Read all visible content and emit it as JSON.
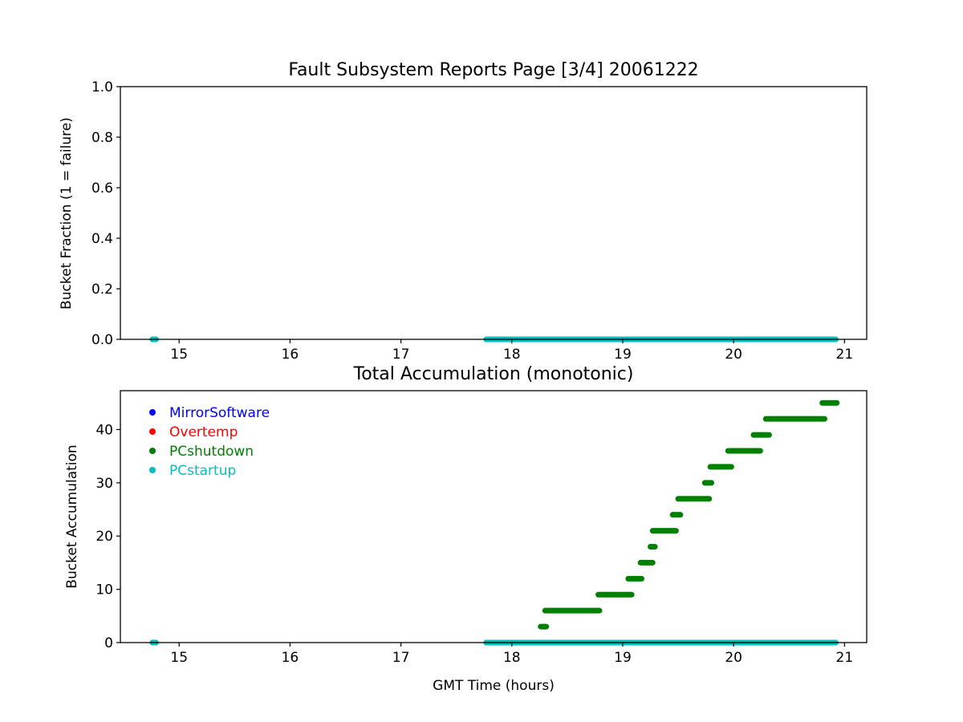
{
  "colors": {
    "MirrorSoftware": "#0000ff",
    "Overtemp": "#ff0000",
    "PCshutdown": "#008000",
    "PCstartup": "#00bfbf"
  },
  "chart_data": [
    {
      "type": "scatter",
      "title": "Fault Subsystem Reports Page [3/4] 20061222",
      "xlabel": "",
      "ylabel": "Bucket Fraction (1 = failure)",
      "xlim": [
        14.47,
        21.2
      ],
      "ylim": [
        0,
        1
      ],
      "xticks": [
        15,
        16,
        17,
        18,
        19,
        20,
        21
      ],
      "yticks": [
        0.0,
        0.2,
        0.4,
        0.6,
        0.8,
        1.0
      ],
      "ytick_labels": [
        "0.0",
        "0.2",
        "0.4",
        "0.6",
        "0.8",
        "1.0"
      ],
      "grid": false,
      "legend": null,
      "series": [
        {
          "name": "PCshutdown",
          "segments": [
            [
              14.76,
              14.79,
              0
            ],
            [
              17.77,
              20.92,
              0
            ]
          ]
        },
        {
          "name": "PCstartup",
          "segments": [
            [
              14.76,
              14.79,
              0
            ],
            [
              17.77,
              20.92,
              0
            ]
          ]
        }
      ]
    },
    {
      "type": "scatter",
      "title": "Total Accumulation (monotonic)",
      "xlabel": "GMT Time (hours)",
      "ylabel": "Bucket Accumulation",
      "xlim": [
        14.47,
        21.2
      ],
      "ylim": [
        0,
        47.3
      ],
      "xticks": [
        15,
        16,
        17,
        18,
        19,
        20,
        21
      ],
      "yticks": [
        0,
        10,
        20,
        30,
        40
      ],
      "ytick_labels": [
        "0",
        "10",
        "20",
        "30",
        "40"
      ],
      "grid": false,
      "legend": {
        "placement": "upper-left",
        "entries": [
          "MirrorSoftware",
          "Overtemp",
          "PCshutdown",
          "PCstartup"
        ]
      },
      "series": [
        {
          "name": "MirrorSoftware",
          "segments": []
        },
        {
          "name": "Overtemp",
          "segments": []
        },
        {
          "name": "PCshutdown",
          "segments": [
            [
              14.76,
              14.79,
              0
            ],
            [
              17.77,
              20.92,
              0
            ],
            [
              18.26,
              18.31,
              3
            ],
            [
              18.3,
              18.79,
              6
            ],
            [
              18.78,
              19.08,
              9
            ],
            [
              19.05,
              19.17,
              12
            ],
            [
              19.16,
              19.27,
              15
            ],
            [
              19.25,
              19.29,
              18
            ],
            [
              19.27,
              19.48,
              21
            ],
            [
              19.45,
              19.52,
              24
            ],
            [
              19.5,
              19.78,
              27
            ],
            [
              19.74,
              19.8,
              30
            ],
            [
              19.79,
              19.98,
              33
            ],
            [
              19.95,
              20.24,
              36
            ],
            [
              20.18,
              20.32,
              39
            ],
            [
              20.29,
              20.82,
              42
            ],
            [
              20.8,
              20.93,
              45
            ]
          ]
        },
        {
          "name": "PCstartup",
          "segments": [
            [
              14.76,
              14.79,
              0
            ],
            [
              17.77,
              20.92,
              0
            ]
          ]
        }
      ]
    }
  ]
}
